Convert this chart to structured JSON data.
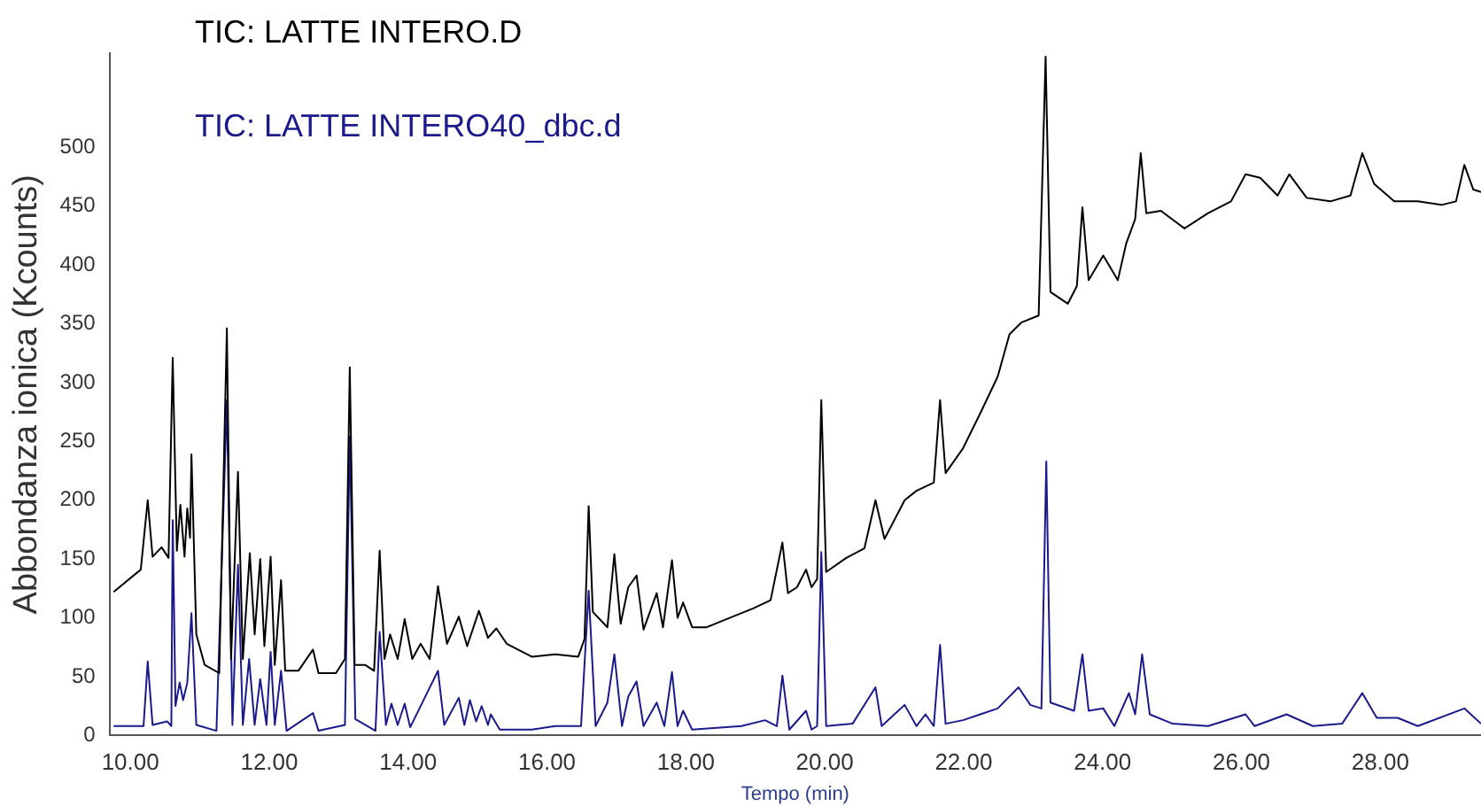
{
  "chart_data": {
    "type": "line",
    "xlabel": "Tempo (min)",
    "ylabel": "Abbondanza ionica (Kcounts)",
    "legend": "top left",
    "grid": false,
    "marker": "none",
    "line_style": "solid",
    "xlim": [
      9.7,
      29.45
    ],
    "ylim": [
      0,
      580
    ],
    "xticks": [
      {
        "value": 10,
        "label": "10.00"
      },
      {
        "value": 12,
        "label": "12.00"
      },
      {
        "value": 14,
        "label": "14.00"
      },
      {
        "value": 16,
        "label": "16.00"
      },
      {
        "value": 18,
        "label": "18.00"
      },
      {
        "value": 20,
        "label": "20.00"
      },
      {
        "value": 22,
        "label": "22.00"
      },
      {
        "value": 24,
        "label": "24.00"
      },
      {
        "value": 26,
        "label": "26.00"
      },
      {
        "value": 28,
        "label": "28.00"
      }
    ],
    "yticks": [
      0,
      50,
      100,
      150,
      200,
      250,
      300,
      350,
      400,
      450,
      500
    ],
    "series": [
      {
        "name": "TIC: LATTE INTERO.D",
        "color": "#000000",
        "x": [
          9.76,
          10.15,
          10.25,
          10.32,
          10.45,
          10.55,
          10.61,
          10.67,
          10.72,
          10.78,
          10.82,
          10.86,
          10.88,
          10.95,
          11.07,
          11.28,
          11.39,
          11.45,
          11.55,
          11.62,
          11.72,
          11.79,
          11.87,
          11.93,
          12.02,
          12.08,
          12.17,
          12.23,
          12.42,
          12.63,
          12.71,
          12.96,
          13.09,
          13.16,
          13.23,
          13.38,
          13.51,
          13.59,
          13.66,
          13.74,
          13.85,
          13.95,
          14.06,
          14.18,
          14.31,
          14.43,
          14.56,
          14.73,
          14.85,
          15.02,
          15.15,
          15.27,
          15.42,
          15.78,
          16.12,
          16.45,
          16.54,
          16.6,
          16.66,
          16.87,
          16.97,
          17.06,
          17.17,
          17.29,
          17.39,
          17.58,
          17.67,
          17.8,
          17.88,
          17.96,
          18.09,
          18.3,
          18.63,
          18.97,
          19.22,
          19.39,
          19.47,
          19.6,
          19.73,
          19.81,
          19.89,
          19.95,
          20.02,
          20.31,
          20.57,
          20.73,
          20.86,
          21.15,
          21.32,
          21.57,
          21.66,
          21.74,
          21.99,
          22.24,
          22.49,
          22.66,
          22.83,
          23.08,
          23.18,
          23.25,
          23.5,
          23.63,
          23.71,
          23.8,
          24.01,
          24.22,
          24.34,
          24.47,
          24.55,
          24.63,
          24.84,
          25.18,
          25.52,
          25.85,
          26.06,
          26.27,
          26.52,
          26.69,
          26.94,
          27.28,
          27.57,
          27.74,
          27.91,
          28.2,
          28.54,
          28.88,
          29.09,
          29.21,
          29.34,
          29.45
        ],
        "values": [
          122,
          141,
          200,
          152,
          160,
          151,
          321,
          157,
          196,
          152,
          193,
          168,
          239,
          86,
          60,
          53,
          346,
          65,
          224,
          65,
          155,
          86,
          150,
          76,
          152,
          60,
          132,
          55,
          55,
          73,
          53,
          53,
          65,
          313,
          60,
          60,
          55,
          157,
          65,
          86,
          65,
          99,
          65,
          78,
          65,
          127,
          78,
          101,
          76,
          106,
          83,
          91,
          78,
          67,
          69,
          67,
          82,
          195,
          105,
          92,
          154,
          95,
          126,
          136,
          90,
          121,
          92,
          149,
          100,
          113,
          92,
          92,
          100,
          108,
          115,
          164,
          121,
          126,
          141,
          126,
          133,
          285,
          139,
          151,
          159,
          200,
          167,
          200,
          208,
          215,
          285,
          223,
          244,
          274,
          305,
          341,
          351,
          357,
          577,
          377,
          367,
          382,
          449,
          387,
          408,
          387,
          418,
          439,
          495,
          444,
          446,
          431,
          444,
          454,
          477,
          474,
          459,
          477,
          457,
          454,
          459,
          495,
          469,
          454,
          454,
          451,
          454,
          485,
          464,
          462
        ]
      },
      {
        "name": "TIC: LATTE INTERO40_dbc.d",
        "color": "#1a1a8c",
        "x": [
          9.76,
          10.19,
          10.25,
          10.32,
          10.53,
          10.59,
          10.61,
          10.65,
          10.71,
          10.76,
          10.82,
          10.88,
          10.95,
          11.24,
          11.39,
          11.47,
          11.55,
          11.62,
          11.71,
          11.79,
          11.87,
          11.96,
          12.02,
          12.08,
          12.17,
          12.25,
          12.63,
          12.71,
          13.09,
          13.16,
          13.24,
          13.53,
          13.59,
          13.68,
          13.76,
          13.85,
          13.95,
          14.03,
          14.43,
          14.52,
          14.73,
          14.81,
          14.89,
          14.98,
          15.06,
          15.15,
          15.19,
          15.32,
          15.78,
          16.12,
          16.49,
          16.6,
          16.7,
          16.87,
          16.97,
          17.08,
          17.17,
          17.29,
          17.39,
          17.58,
          17.69,
          17.8,
          17.88,
          17.96,
          18.09,
          18.8,
          19.14,
          19.31,
          19.39,
          19.49,
          19.73,
          19.81,
          19.89,
          19.95,
          20.02,
          20.4,
          20.73,
          20.82,
          21.15,
          21.32,
          21.45,
          21.57,
          21.66,
          21.74,
          21.99,
          22.24,
          22.49,
          22.79,
          22.96,
          23.12,
          23.19,
          23.25,
          23.59,
          23.71,
          23.8,
          24.01,
          24.17,
          24.38,
          24.47,
          24.57,
          24.68,
          25.01,
          25.52,
          26.06,
          26.19,
          26.65,
          27.03,
          27.45,
          27.74,
          27.95,
          28.25,
          28.54,
          29.21,
          29.45
        ],
        "values": [
          8,
          8,
          63,
          9,
          12,
          8,
          183,
          25,
          45,
          30,
          45,
          104,
          9,
          4,
          285,
          9,
          145,
          9,
          65,
          9,
          48,
          9,
          71,
          9,
          55,
          4,
          19,
          4,
          9,
          254,
          14,
          4,
          88,
          9,
          27,
          9,
          27,
          7,
          55,
          9,
          32,
          9,
          30,
          12,
          25,
          9,
          18,
          5,
          5,
          8,
          8,
          123,
          8,
          28,
          69,
          8,
          33,
          46,
          8,
          28,
          8,
          54,
          8,
          21,
          5,
          8,
          13,
          8,
          51,
          5,
          21,
          5,
          8,
          156,
          8,
          10,
          41,
          8,
          26,
          8,
          18,
          8,
          77,
          10,
          13,
          18,
          23,
          41,
          26,
          23,
          233,
          28,
          21,
          69,
          21,
          23,
          8,
          36,
          18,
          69,
          18,
          10,
          8,
          18,
          8,
          18,
          8,
          10,
          36,
          15,
          15,
          8,
          23,
          10
        ]
      }
    ]
  }
}
